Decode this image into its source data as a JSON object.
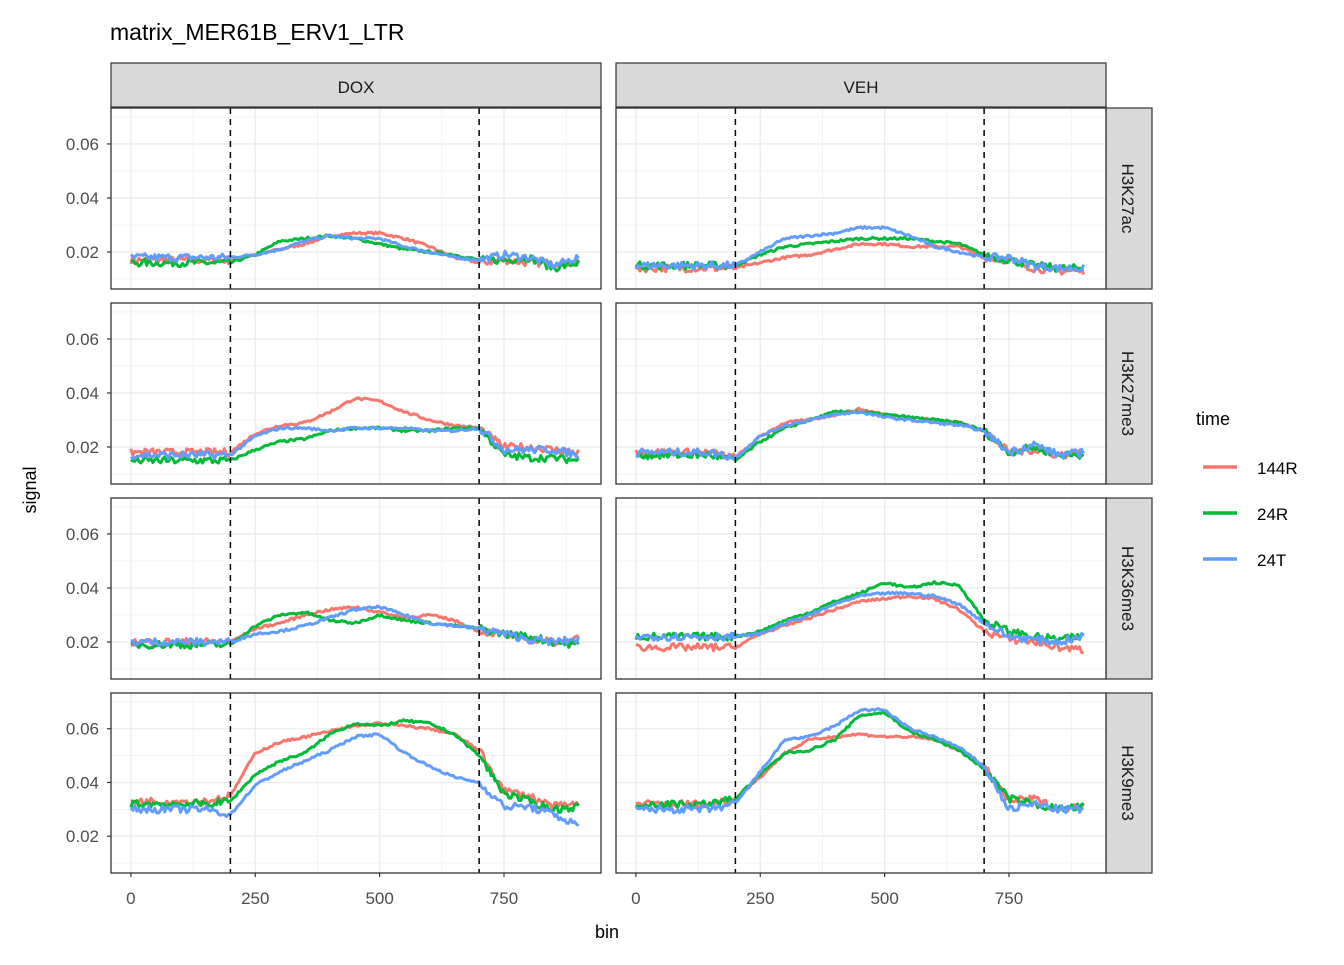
{
  "chart_data": {
    "type": "line",
    "title": "matrix_MER61B_ERV1_LTR",
    "xlabel": "bin",
    "ylabel": "signal",
    "xlim": [
      -40,
      945
    ],
    "ylim": [
      0.0063,
      0.0733
    ],
    "x_ticks": [
      0,
      250,
      500,
      750
    ],
    "x_tick_labels": [
      "0",
      "250",
      "500",
      "750"
    ],
    "y_ticks": [
      0.02,
      0.04,
      0.06
    ],
    "y_tick_labels": [
      "0.02",
      "0.04",
      "0.06"
    ],
    "vlines": [
      200,
      700
    ],
    "grid": true,
    "columns": [
      "DOX",
      "VEH"
    ],
    "rows": [
      "H3K27ac",
      "H3K27me3",
      "H3K36me3",
      "H3K9me3"
    ],
    "legend": {
      "title": "time",
      "position": "right",
      "entries": [
        {
          "name": "144R",
          "color": "#F8766D"
        },
        {
          "name": "24R",
          "color": "#00BA38"
        },
        {
          "name": "24T",
          "color": "#619CFF"
        }
      ]
    },
    "x": [
      0,
      50,
      100,
      150,
      200,
      250,
      300,
      350,
      400,
      450,
      500,
      550,
      600,
      650,
      700,
      750,
      800,
      850,
      900
    ],
    "panels": [
      {
        "column": "DOX",
        "row": "H3K27ac",
        "series": {
          "144R": [
            0.017,
            0.017,
            0.017,
            0.017,
            0.017,
            0.019,
            0.021,
            0.023,
            0.026,
            0.027,
            0.027,
            0.025,
            0.022,
            0.018,
            0.016,
            0.017,
            0.016,
            0.016,
            0.016
          ],
          "24R": [
            0.016,
            0.016,
            0.016,
            0.016,
            0.016,
            0.019,
            0.024,
            0.025,
            0.026,
            0.025,
            0.023,
            0.021,
            0.02,
            0.019,
            0.017,
            0.017,
            0.018,
            0.014,
            0.016
          ],
          "24T": [
            0.018,
            0.018,
            0.018,
            0.018,
            0.018,
            0.019,
            0.021,
            0.024,
            0.026,
            0.025,
            0.025,
            0.022,
            0.02,
            0.018,
            0.017,
            0.019,
            0.018,
            0.015,
            0.018
          ]
        }
      },
      {
        "column": "VEH",
        "row": "H3K27ac",
        "series": {
          "144R": [
            0.014,
            0.014,
            0.014,
            0.014,
            0.014,
            0.016,
            0.018,
            0.019,
            0.021,
            0.023,
            0.023,
            0.022,
            0.022,
            0.022,
            0.018,
            0.017,
            0.014,
            0.013,
            0.013
          ],
          "24R": [
            0.015,
            0.015,
            0.015,
            0.015,
            0.015,
            0.019,
            0.022,
            0.023,
            0.024,
            0.025,
            0.025,
            0.025,
            0.024,
            0.023,
            0.019,
            0.017,
            0.015,
            0.014,
            0.014
          ],
          "24T": [
            0.015,
            0.015,
            0.015,
            0.015,
            0.015,
            0.02,
            0.025,
            0.026,
            0.027,
            0.029,
            0.029,
            0.026,
            0.022,
            0.02,
            0.018,
            0.018,
            0.015,
            0.014,
            0.014
          ]
        }
      },
      {
        "column": "DOX",
        "row": "H3K27me3",
        "series": {
          "144R": [
            0.018,
            0.018,
            0.018,
            0.018,
            0.018,
            0.025,
            0.028,
            0.029,
            0.033,
            0.038,
            0.037,
            0.033,
            0.03,
            0.028,
            0.027,
            0.02,
            0.02,
            0.019,
            0.018
          ],
          "24R": [
            0.015,
            0.015,
            0.015,
            0.015,
            0.015,
            0.019,
            0.022,
            0.023,
            0.026,
            0.027,
            0.027,
            0.026,
            0.026,
            0.027,
            0.027,
            0.017,
            0.016,
            0.016,
            0.015
          ],
          "24T": [
            0.017,
            0.017,
            0.017,
            0.017,
            0.017,
            0.024,
            0.027,
            0.027,
            0.026,
            0.027,
            0.027,
            0.027,
            0.026,
            0.026,
            0.027,
            0.019,
            0.019,
            0.019,
            0.017
          ]
        }
      },
      {
        "column": "VEH",
        "row": "H3K27me3",
        "series": {
          "144R": [
            0.018,
            0.018,
            0.018,
            0.018,
            0.016,
            0.024,
            0.029,
            0.03,
            0.032,
            0.034,
            0.032,
            0.031,
            0.03,
            0.029,
            0.026,
            0.018,
            0.019,
            0.017,
            0.018
          ],
          "24R": [
            0.017,
            0.017,
            0.017,
            0.017,
            0.015,
            0.022,
            0.027,
            0.03,
            0.033,
            0.033,
            0.032,
            0.031,
            0.03,
            0.029,
            0.026,
            0.018,
            0.02,
            0.017,
            0.017
          ],
          "24T": [
            0.018,
            0.018,
            0.018,
            0.018,
            0.016,
            0.024,
            0.028,
            0.03,
            0.032,
            0.033,
            0.031,
            0.03,
            0.029,
            0.028,
            0.026,
            0.018,
            0.021,
            0.017,
            0.018
          ]
        }
      },
      {
        "column": "DOX",
        "row": "H3K36me3",
        "series": {
          "144R": [
            0.02,
            0.02,
            0.02,
            0.02,
            0.02,
            0.025,
            0.027,
            0.03,
            0.032,
            0.033,
            0.031,
            0.029,
            0.03,
            0.028,
            0.024,
            0.023,
            0.021,
            0.02,
            0.021
          ],
          "24R": [
            0.019,
            0.019,
            0.019,
            0.019,
            0.019,
            0.026,
            0.03,
            0.031,
            0.028,
            0.027,
            0.03,
            0.028,
            0.027,
            0.026,
            0.025,
            0.023,
            0.022,
            0.02,
            0.019
          ],
          "24T": [
            0.02,
            0.02,
            0.02,
            0.02,
            0.02,
            0.023,
            0.024,
            0.026,
            0.029,
            0.032,
            0.033,
            0.03,
            0.027,
            0.026,
            0.025,
            0.023,
            0.021,
            0.02,
            0.021
          ]
        }
      },
      {
        "column": "VEH",
        "row": "H3K36me3",
        "series": {
          "144R": [
            0.018,
            0.018,
            0.018,
            0.018,
            0.018,
            0.023,
            0.026,
            0.029,
            0.032,
            0.035,
            0.036,
            0.037,
            0.036,
            0.032,
            0.024,
            0.021,
            0.02,
            0.018,
            0.017
          ],
          "24R": [
            0.022,
            0.022,
            0.022,
            0.022,
            0.022,
            0.024,
            0.028,
            0.031,
            0.035,
            0.038,
            0.042,
            0.04,
            0.042,
            0.041,
            0.028,
            0.024,
            0.022,
            0.021,
            0.022
          ],
          "24T": [
            0.022,
            0.022,
            0.022,
            0.022,
            0.022,
            0.023,
            0.027,
            0.03,
            0.034,
            0.037,
            0.038,
            0.038,
            0.037,
            0.034,
            0.027,
            0.022,
            0.021,
            0.02,
            0.022
          ]
        }
      },
      {
        "column": "DOX",
        "row": "H3K9me3",
        "series": {
          "144R": [
            0.033,
            0.033,
            0.033,
            0.033,
            0.035,
            0.051,
            0.055,
            0.057,
            0.059,
            0.061,
            0.062,
            0.061,
            0.06,
            0.058,
            0.052,
            0.037,
            0.035,
            0.031,
            0.032
          ],
          "24R": [
            0.032,
            0.032,
            0.032,
            0.032,
            0.033,
            0.043,
            0.048,
            0.051,
            0.058,
            0.062,
            0.061,
            0.063,
            0.062,
            0.058,
            0.05,
            0.036,
            0.033,
            0.03,
            0.031
          ],
          "24T": [
            0.03,
            0.03,
            0.03,
            0.03,
            0.028,
            0.039,
            0.044,
            0.048,
            0.052,
            0.057,
            0.058,
            0.051,
            0.046,
            0.042,
            0.04,
            0.031,
            0.031,
            0.028,
            0.024
          ]
        }
      },
      {
        "column": "VEH",
        "row": "H3K9me3",
        "series": {
          "144R": [
            0.032,
            0.032,
            0.032,
            0.032,
            0.034,
            0.042,
            0.051,
            0.056,
            0.057,
            0.058,
            0.057,
            0.057,
            0.056,
            0.052,
            0.046,
            0.033,
            0.034,
            0.03,
            0.031
          ],
          "24R": [
            0.032,
            0.032,
            0.032,
            0.032,
            0.034,
            0.043,
            0.051,
            0.052,
            0.056,
            0.065,
            0.066,
            0.059,
            0.056,
            0.052,
            0.045,
            0.034,
            0.032,
            0.03,
            0.031
          ],
          "24T": [
            0.03,
            0.03,
            0.03,
            0.03,
            0.032,
            0.044,
            0.056,
            0.057,
            0.061,
            0.067,
            0.067,
            0.06,
            0.057,
            0.053,
            0.046,
            0.03,
            0.032,
            0.03,
            0.03
          ]
        }
      }
    ]
  }
}
